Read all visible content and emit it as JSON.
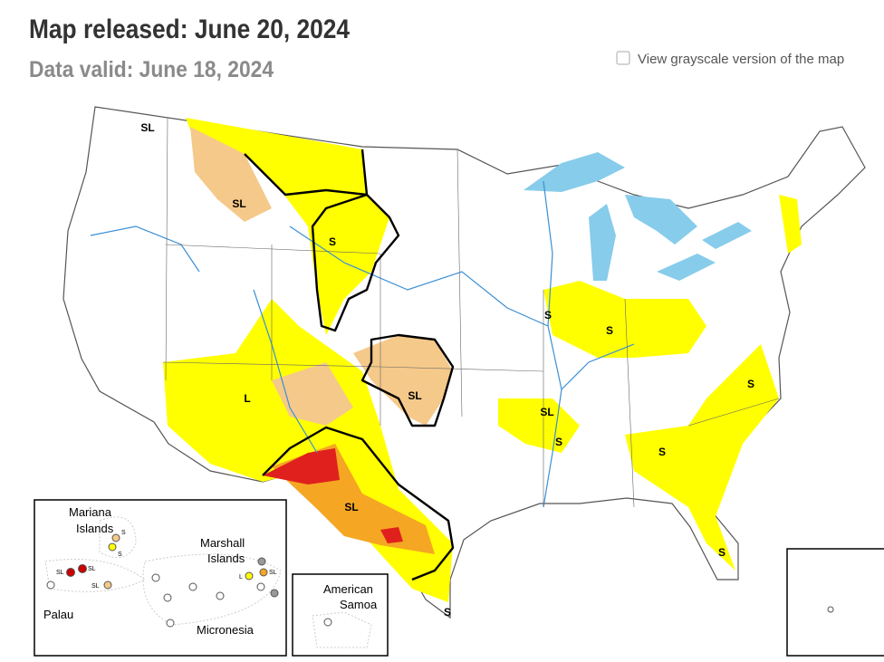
{
  "header": {
    "title": "Map released: June 20, 2024",
    "subtitle": "Data valid: June 18, 2024"
  },
  "controls": {
    "grayscale_label": "View grayscale version of the map"
  },
  "map": {
    "labels": [
      "SL",
      "SL",
      "S",
      "L",
      "SL",
      "SL",
      "S",
      "S",
      "SL",
      "S",
      "S",
      "S",
      "S",
      "S"
    ]
  },
  "insets": {
    "pacific": {
      "mariana": [
        "Mariana",
        "Islands"
      ],
      "marshall": [
        "Marshall",
        "Islands"
      ],
      "palau": "Palau",
      "micronesia": "Micronesia",
      "markers": [
        "S",
        "S",
        "SL",
        "SL",
        "SL",
        "L",
        "SL"
      ]
    },
    "samoa": {
      "label": [
        "American",
        "Samoa"
      ]
    }
  }
}
